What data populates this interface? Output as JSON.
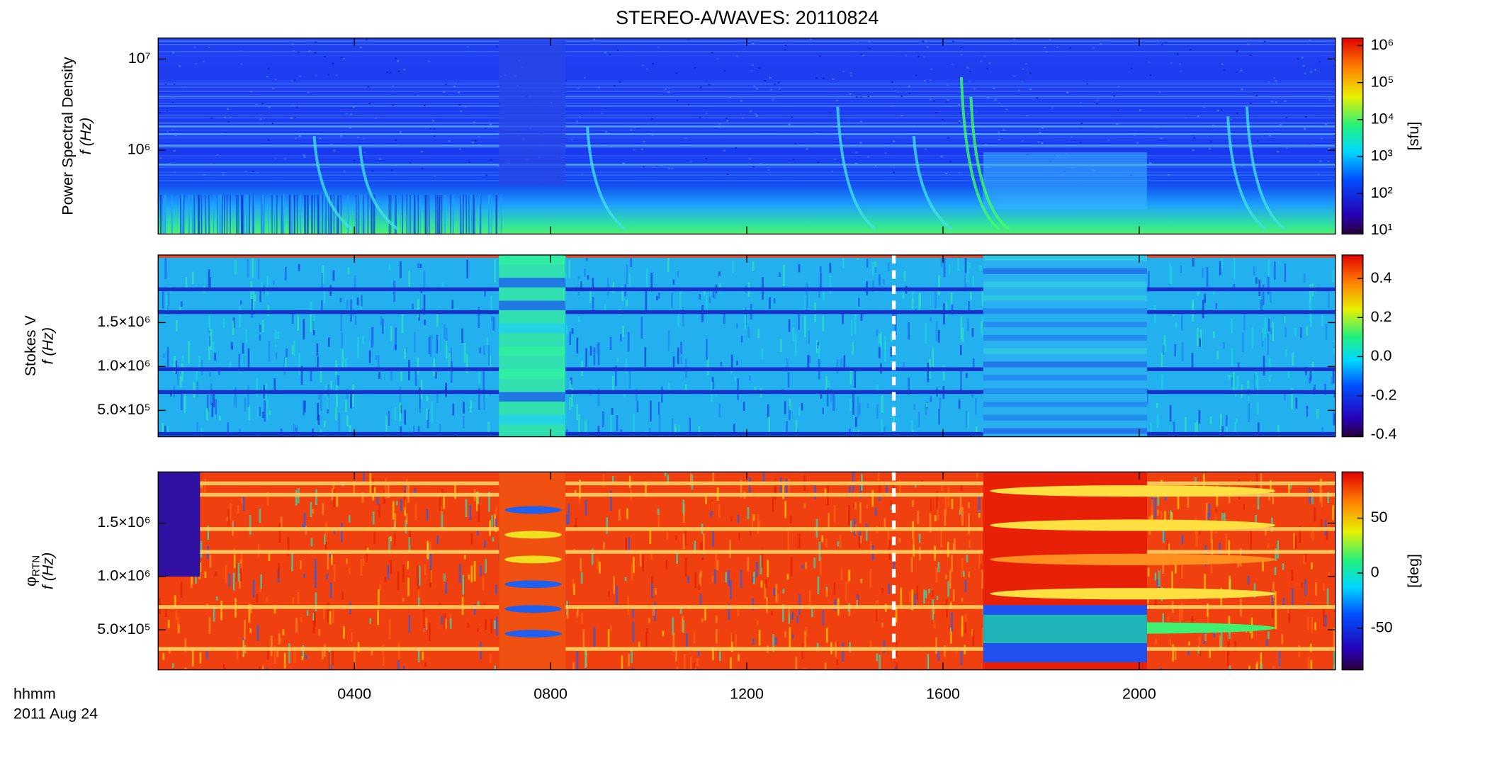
{
  "title": "STEREO-A/WAVES: 20110824",
  "x_label": "hhmm",
  "date": "2011 Aug 24",
  "chart_data": [
    {
      "type": "spectrogram",
      "y_label": "Power Spectral Density",
      "y_label_2": "f (Hz)",
      "log_y": true,
      "ylim": [
        120000,
        17000000
      ],
      "yticks": [
        {
          "value": 1000000,
          "label": "10⁶"
        },
        {
          "value": 10000000,
          "label": "10⁷"
        }
      ],
      "xlim": [
        0,
        24
      ],
      "xticks": [
        {
          "value": 4,
          "label": "0400"
        },
        {
          "value": 8,
          "label": "0800"
        },
        {
          "value": 12,
          "label": "1200"
        },
        {
          "value": 16,
          "label": "1600"
        },
        {
          "value": 20,
          "label": "2000"
        }
      ],
      "colorbar_label": "[sfu]",
      "log_c": true,
      "clim": [
        8,
        1600000
      ],
      "cticks": [
        {
          "value": 10,
          "label": "10¹"
        },
        {
          "value": 100,
          "label": "10²"
        },
        {
          "value": 1000,
          "label": "10³"
        },
        {
          "value": 10000,
          "label": "10⁴"
        },
        {
          "value": 100000,
          "label": "10⁵"
        },
        {
          "value": 1000000,
          "label": "10⁶"
        }
      ]
    },
    {
      "type": "spectrogram",
      "y_label": "Stokes V",
      "y_label_2": "f (Hz)",
      "log_y": false,
      "ylim": [
        200000,
        2270000
      ],
      "yticks": [
        {
          "value": 500000,
          "label": "5.0×10⁵"
        },
        {
          "value": 1000000,
          "label": "1.0×10⁶"
        },
        {
          "value": 1500000,
          "label": "1.5×10⁶"
        }
      ],
      "xlim": [
        0,
        24
      ],
      "xticks": [
        {
          "value": 4,
          "label": "0400"
        },
        {
          "value": 8,
          "label": "0800"
        },
        {
          "value": 12,
          "label": "1200"
        },
        {
          "value": 16,
          "label": "1600"
        },
        {
          "value": 20,
          "label": "2000"
        }
      ],
      "log_c": false,
      "clim": [
        -0.41,
        0.52
      ],
      "cticks": [
        -0.4,
        -0.2,
        {
          "value": 0,
          "label": "0.0"
        },
        0.2,
        0.4
      ]
    },
    {
      "type": "spectrogram",
      "y_label_symbol": "φ",
      "y_label_subscript": "RTN",
      "y_label_2": "f (Hz)",
      "log_y": false,
      "ylim": [
        125000,
        1980000
      ],
      "yticks": [
        {
          "value": 500000,
          "label": "5.0×10⁵"
        },
        {
          "value": 1000000,
          "label": "1.0×10⁶"
        },
        {
          "value": 1500000,
          "label": "1.5×10⁶"
        }
      ],
      "xlim": [
        0,
        24
      ],
      "xticks": [
        {
          "value": 4,
          "label": "0400"
        },
        {
          "value": 8,
          "label": "0800"
        },
        {
          "value": 12,
          "label": "1200"
        },
        {
          "value": 16,
          "label": "1600"
        },
        {
          "value": 20,
          "label": "2000"
        }
      ],
      "colorbar_label": "[deg]",
      "log_c": false,
      "clim": [
        -88,
        92
      ],
      "cticks": [
        -50,
        0,
        50
      ]
    }
  ]
}
